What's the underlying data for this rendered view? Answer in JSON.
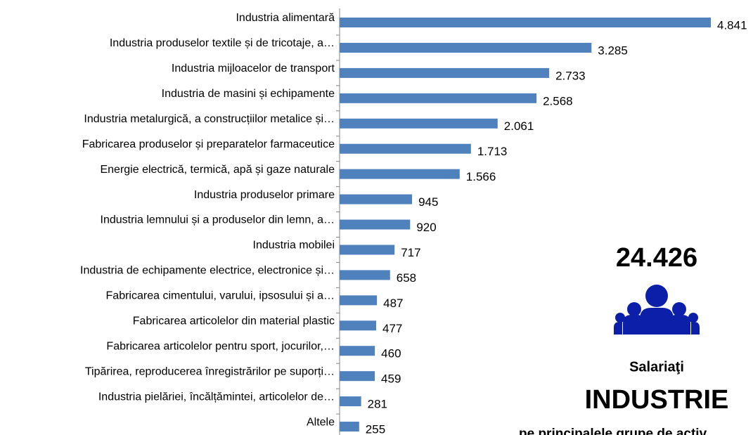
{
  "chart_data": {
    "type": "hbar",
    "categories": [
      "Industria alimentară",
      "Industria produselor textile și de tricotaje, a…",
      "Industria mijloacelor de transport",
      "Industria de masini și echipamente",
      "Industria metalurgică, a construcțiilor metalice și…",
      "Fabricarea produselor și preparatelor farmaceutice",
      "Energie electrică, termică, apă și gaze naturale",
      "Industria produselor primare",
      "Industria lemnului și a produselor din lemn, a…",
      "Industria mobilei",
      "Industria de echipamente electrice, electronice și…",
      "Fabricarea cimentului, varului, ipsosului și a…",
      "Fabricarea articolelor din material plastic",
      "Fabricarea articolelor pentru sport, jocurilor,…",
      "Tipărirea, reproducerea înregistrărilor pe suporți…",
      "Industria pielăriei, încălțămintei, articolelor de…",
      "Altele"
    ],
    "values": [
      4841,
      3285,
      2733,
      2568,
      2061,
      1713,
      1566,
      945,
      920,
      717,
      658,
      487,
      477,
      460,
      459,
      281,
      255
    ],
    "value_labels": [
      "4.841",
      "3.285",
      "2.733",
      "2.568",
      "2.061",
      "1.713",
      "1.566",
      "945",
      "920",
      "717",
      "658",
      "487",
      "477",
      "460",
      "459",
      "281",
      "255"
    ],
    "color": "#4f81bd",
    "annotations": {
      "total": "24.426",
      "caption": "Salariaţi",
      "sector": "INDUSTRIE",
      "subtitle": "pe principalele grupe de activ"
    }
  }
}
